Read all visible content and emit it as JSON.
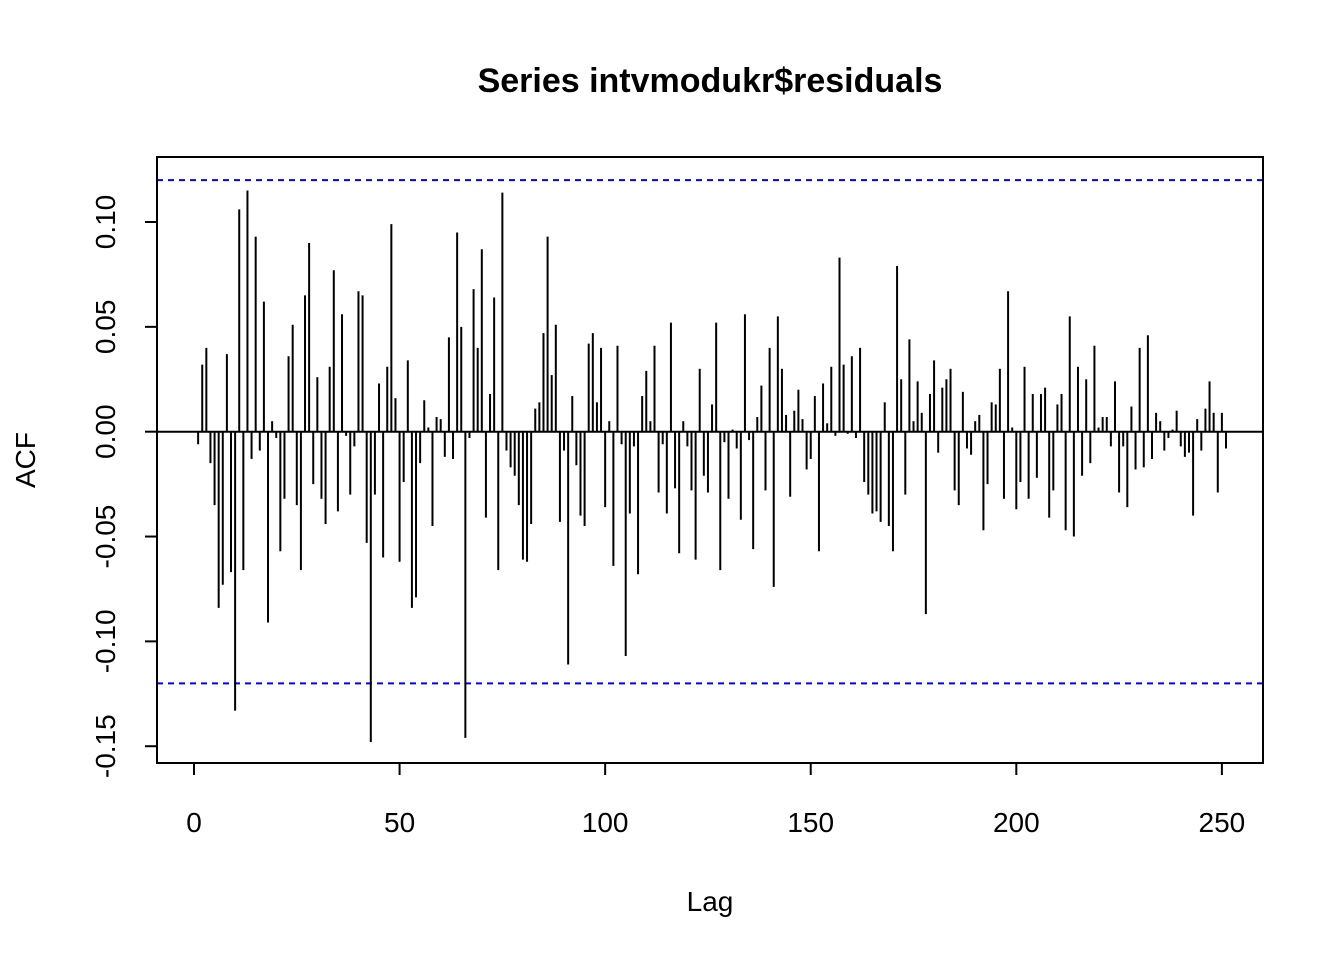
{
  "chart_data": {
    "type": "acf",
    "title": "Series intvmodukr$residuals",
    "xlabel": "Lag",
    "ylabel": "ACF",
    "xlim": [
      -9,
      260
    ],
    "ylim": [
      -0.158,
      0.131
    ],
    "x_ticks": [
      0,
      50,
      100,
      150,
      200,
      250
    ],
    "x_tick_labels": [
      "0",
      "50",
      "100",
      "150",
      "200",
      "250"
    ],
    "y_ticks": [
      -0.15,
      -0.1,
      -0.05,
      0.0,
      0.05,
      0.1
    ],
    "y_tick_labels": [
      "-0.15",
      "-0.10",
      "-0.05",
      "0.00",
      "0.05",
      "0.10"
    ],
    "confidence_bound": 0.12,
    "confidence_color": "#0000ff",
    "bar_color": "#000000",
    "lags_start": 1,
    "values": [
      -0.006,
      0.032,
      0.04,
      -0.015,
      -0.035,
      -0.084,
      -0.073,
      0.037,
      -0.067,
      -0.133,
      0.106,
      -0.066,
      0.115,
      -0.013,
      0.093,
      -0.009,
      0.062,
      -0.091,
      0.005,
      -0.003,
      -0.057,
      -0.032,
      0.036,
      0.051,
      -0.035,
      -0.066,
      0.065,
      0.09,
      -0.025,
      0.026,
      -0.032,
      -0.044,
      0.031,
      0.077,
      -0.038,
      0.056,
      -0.002,
      -0.03,
      -0.007,
      0.067,
      0.065,
      -0.053,
      -0.148,
      -0.03,
      0.023,
      -0.06,
      0.031,
      0.099,
      0.016,
      -0.062,
      -0.024,
      0.034,
      -0.084,
      -0.079,
      -0.015,
      0.015,
      0.002,
      -0.045,
      0.007,
      0.006,
      -0.012,
      0.045,
      -0.013,
      0.095,
      0.05,
      -0.146,
      -0.003,
      0.068,
      0.04,
      0.087,
      -0.041,
      0.018,
      0.064,
      -0.066,
      0.114,
      -0.009,
      -0.017,
      -0.021,
      -0.035,
      -0.061,
      -0.062,
      -0.044,
      0.011,
      0.014,
      0.047,
      0.093,
      0.027,
      0.051,
      -0.043,
      -0.009,
      -0.111,
      0.017,
      -0.016,
      -0.04,
      -0.045,
      0.042,
      0.047,
      0.014,
      0.04,
      -0.036,
      0.005,
      -0.064,
      0.041,
      -0.006,
      -0.107,
      -0.039,
      -0.007,
      -0.068,
      0.017,
      0.029,
      0.005,
      0.041,
      -0.029,
      -0.006,
      -0.039,
      0.052,
      -0.027,
      -0.058,
      0.005,
      -0.007,
      -0.028,
      -0.061,
      0.03,
      -0.021,
      -0.029,
      0.013,
      0.052,
      -0.066,
      -0.005,
      -0.032,
      0.001,
      -0.008,
      -0.042,
      0.056,
      -0.004,
      -0.056,
      0.007,
      0.022,
      -0.028,
      0.04,
      -0.074,
      0.055,
      0.03,
      0.008,
      -0.031,
      0.01,
      0.02,
      0.006,
      -0.018,
      -0.013,
      0.017,
      -0.057,
      0.023,
      0.004,
      0.031,
      -0.002,
      0.083,
      0.032,
      -0.001,
      0.036,
      -0.003,
      0.04,
      -0.024,
      -0.03,
      -0.039,
      -0.038,
      -0.043,
      0.014,
      -0.045,
      -0.057,
      0.079,
      0.025,
      -0.03,
      0.044,
      0.005,
      0.024,
      0.009,
      -0.087,
      0.018,
      0.034,
      -0.01,
      0.021,
      0.025,
      0.03,
      -0.028,
      -0.035,
      0.019,
      -0.008,
      -0.011,
      0.005,
      0.008,
      -0.047,
      -0.025,
      0.014,
      0.013,
      0.03,
      -0.032,
      0.067,
      0.002,
      -0.037,
      -0.024,
      0.031,
      -0.032,
      0.018,
      -0.022,
      0.018,
      0.021,
      -0.041,
      -0.028,
      0.013,
      0.018,
      -0.047,
      0.055,
      -0.05,
      0.031,
      -0.021,
      0.025,
      -0.015,
      0.041,
      0.002,
      0.007,
      0.007,
      -0.007,
      0.024,
      -0.029,
      -0.007,
      -0.036,
      0.012,
      -0.018,
      0.04,
      -0.017,
      0.046,
      -0.013,
      0.009,
      0.005,
      -0.009,
      -0.003,
      0.001,
      0.01,
      -0.007,
      -0.012,
      -0.01,
      -0.04,
      0.006,
      -0.009,
      0.011,
      0.024,
      0.009,
      -0.029,
      0.009,
      -0.008
    ]
  }
}
